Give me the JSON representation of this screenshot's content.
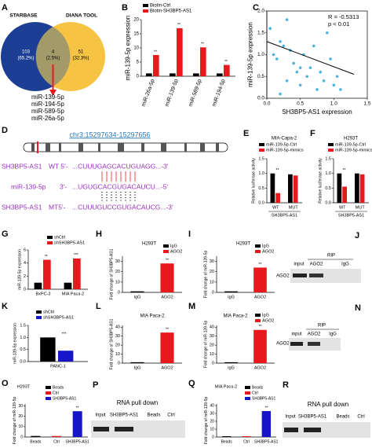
{
  "venn": {
    "label": "A",
    "sets": [
      "STARBASE",
      "DIANA TOOL"
    ],
    "regions": [
      {
        "count": "103",
        "percent": "(65.2%)"
      },
      {
        "count": "4",
        "percent": "(2.5%)"
      },
      {
        "count": "51",
        "percent": "(32.3%)"
      }
    ],
    "mirnas": [
      "miR-139-5p",
      "miR-194-5p",
      "miR-589-5p",
      "miR-26a-5p"
    ]
  },
  "locus": {
    "label": "D",
    "coords": "chr3:15297634-15297656",
    "rows": [
      {
        "name": "SH3BP5-AS1",
        "tag": "WT 5'-",
        "seq": "...CUUUGAGCACUGUAGG...-3'"
      },
      {
        "name": "miR-139-5p",
        "tag": "3'-",
        "seq": "...UGUGCACGUGACAUCU...-5'"
      },
      {
        "name": "SH3BP5-AS1",
        "tag": "MT5'-",
        "seq": "...CUUUGUCCGUGACAUCG...-3'"
      }
    ]
  },
  "blots": [
    {
      "label": "J",
      "title": "RIP",
      "lanes": [
        "input",
        "AGO2",
        "IgG"
      ],
      "row": "AGO2"
    },
    {
      "label": "N",
      "title": "RIP",
      "lanes": [
        "input",
        "AGO2",
        "IgG"
      ],
      "row": "AGO2"
    },
    {
      "label": "P",
      "title": "RNA pull down",
      "lanes": [
        "Input",
        "SH3BP5-AS1",
        "Beads",
        "Ctrl"
      ]
    },
    {
      "label": "R",
      "title": "RNA pull down",
      "lanes": [
        "Input",
        "SH3BP5-AS1",
        "Beads",
        "Ctrl"
      ]
    }
  ],
  "chart_data": [
    {
      "type": "bar",
      "label": "B",
      "ylabel": "miR-139-5p expression",
      "categories": [
        "miR-26a-5p",
        "miR-139-5p",
        "miR-589-5p",
        "miR-194-5p"
      ],
      "series": [
        {
          "name": "Biotin-Ctrl",
          "color": "#000000",
          "values": [
            1,
            1,
            1,
            1
          ]
        },
        {
          "name": "Biotin-SH3BP5-AS1",
          "color": "#e8191d",
          "values": [
            7.5,
            17,
            10.2,
            4
          ]
        }
      ],
      "significance": [
        "**",
        "**",
        "**",
        "**"
      ],
      "ylim": [
        0,
        20
      ],
      "yticks": [
        0,
        5,
        10,
        15,
        20
      ]
    },
    {
      "type": "scatter",
      "label": "C",
      "xlabel": "SH3BP5-AS1 expression",
      "ylabel": "miR-139-5p expression",
      "color": "#4fb3e0",
      "x": [
        0.05,
        0.1,
        0.15,
        0.2,
        0.25,
        0.3,
        0.35,
        0.4,
        0.45,
        0.5,
        0.55,
        0.6,
        0.65,
        0.7,
        0.75,
        0.8,
        0.85,
        0.9,
        0.95,
        1.0,
        1.05,
        1.1,
        0.3,
        0.5,
        0.2
      ],
      "y": [
        1.6,
        1.0,
        0.9,
        1.3,
        1.2,
        0.4,
        1.1,
        0.8,
        0.6,
        0.3,
        1.0,
        0.5,
        0.7,
        1.2,
        0.2,
        0.6,
        0.4,
        1.5,
        0.9,
        0.3,
        0.5,
        0.2,
        1.8,
        0.7,
        0.1
      ],
      "fit": {
        "x": [
          0,
          1.3
        ],
        "y": [
          1.3,
          0.55
        ]
      },
      "annotations": [
        "R = -0.5313",
        "p < 0.01"
      ],
      "xlim": [
        0,
        1.5
      ],
      "xticks": [
        {
          "value": 0,
          "label": "0.0"
        },
        0.5,
        {
          "value": 1,
          "label": "1.0"
        },
        1.5
      ],
      "ylim": [
        0,
        2
      ],
      "yticks": [
        {
          "value": 0,
          "label": "0.0"
        },
        0.5,
        {
          "value": 1,
          "label": "1.0"
        },
        1.5,
        {
          "value": 2,
          "label": "2.0"
        }
      ]
    },
    {
      "type": "bar",
      "label": "E",
      "title": "MIA-Capa-2",
      "xlabel": "SH3BP5-AS1",
      "ylabel": "Relative luciferase activity",
      "categories": [
        "WT",
        "MUT"
      ],
      "series": [
        {
          "name": "miR-139-5p-Ctrl",
          "color": "#000000",
          "values": [
            1.0,
            0.97
          ]
        },
        {
          "name": "miR-139-5p-mimics",
          "color": "#e8191d",
          "values": [
            0.33,
            0.93
          ]
        }
      ],
      "significance": [
        "**",
        null
      ],
      "ylim": [
        0,
        1.5
      ],
      "yticks": [
        {
          "value": 0,
          "label": "0.0"
        },
        0.5,
        {
          "value": 1,
          "label": "1.0"
        },
        1.5
      ]
    },
    {
      "type": "bar",
      "label": "F",
      "title": "H293T",
      "xlabel": "SH3BP5-AS1",
      "ylabel": "Relative luciferase activity",
      "categories": [
        "WT",
        "MUT"
      ],
      "series": [
        {
          "name": "miR-139-5p-Ctrl",
          "color": "#000000",
          "values": [
            1.0,
            1.0
          ]
        },
        {
          "name": "miR-139-5p-mimics",
          "color": "#e8191d",
          "values": [
            0.55,
            0.97
          ]
        }
      ],
      "significance": [
        "**",
        null
      ],
      "ylim": [
        0,
        1.5
      ],
      "yticks": [
        {
          "value": 0,
          "label": "0.0"
        },
        0.5,
        {
          "value": 1,
          "label": "1.0"
        },
        1.5
      ]
    },
    {
      "type": "bar",
      "label": "G",
      "ylabel": "miR-139-5p expression",
      "categories": [
        "BxPC-3",
        "MIA Paca-2"
      ],
      "series": [
        {
          "name": "shCtrl",
          "color": "#000000",
          "values": [
            1,
            1
          ]
        },
        {
          "name": "shSH3BP5-AS1",
          "color": "#e8191d",
          "values": [
            4.5,
            4.7
          ]
        }
      ],
      "significance": [
        "**",
        "***"
      ],
      "ylim": [
        0,
        6
      ],
      "yticks": [
        0,
        2,
        4,
        6
      ]
    },
    {
      "type": "bar",
      "label": "H",
      "title": "H293T",
      "ylabel": "Fold change of SH3BP5-AS1",
      "categories": [
        "IgG",
        "AGO2"
      ],
      "values": [
        1,
        28
      ],
      "colors": [
        "#000000",
        "#e8191d"
      ],
      "legend": true,
      "significance": [
        null,
        "**"
      ],
      "ylim": [
        0,
        35
      ],
      "yticks": [
        0,
        10,
        20,
        30
      ]
    },
    {
      "type": "bar",
      "label": "I",
      "title": "H293T",
      "ylabel": "Fold change of miR-139-5p",
      "categories": [
        "IgG",
        "AGO2"
      ],
      "values": [
        1,
        24
      ],
      "colors": [
        "#000000",
        "#e8191d"
      ],
      "legend": true,
      "significance": [
        null,
        "**"
      ],
      "ylim": [
        0,
        35
      ],
      "yticks": [
        0,
        10,
        20,
        30
      ]
    },
    {
      "type": "bar",
      "label": "K",
      "ylabel": "miR-139-5p expression",
      "categories": [
        "PANC-1"
      ],
      "series": [
        {
          "name": "shCtrl",
          "color": "#000000",
          "values": [
            1.0
          ]
        },
        {
          "name": "shSH3BP5-AS1",
          "color": "#1616c8",
          "values": [
            0.45
          ]
        }
      ],
      "significance": [
        "***"
      ],
      "ylim": [
        0,
        1.5
      ],
      "yticks": [
        {
          "value": 0,
          "label": "0.0"
        },
        0.5,
        {
          "value": 1,
          "label": "1.0"
        },
        1.5
      ]
    },
    {
      "type": "bar",
      "label": "L",
      "title": "MIA Paca-2",
      "ylabel": "Fold change of SH3BP5-AS1",
      "categories": [
        "IgG",
        "AGO2"
      ],
      "values": [
        1,
        34
      ],
      "colors": [
        "#000000",
        "#e8191d"
      ],
      "legend": false,
      "significance": [
        null,
        "**"
      ],
      "ylim": [
        0,
        42
      ],
      "yticks": [
        0,
        10,
        20,
        30,
        40
      ]
    },
    {
      "type": "bar",
      "label": "M",
      "title": "MIA Paca-2",
      "ylabel": "Fold change of miR-139-5p",
      "categories": [
        "IgG",
        "AGO2"
      ],
      "values": [
        1,
        37
      ],
      "colors": [
        "#000000",
        "#e8191d"
      ],
      "legend": true,
      "significance": [
        null,
        "**"
      ],
      "ylim": [
        0,
        42
      ],
      "yticks": [
        0,
        10,
        20,
        30,
        40
      ]
    },
    {
      "type": "bar",
      "label": "O",
      "title": "H293T",
      "ylabel": "Fold change of miR-139-5p",
      "categories": [
        "Beads",
        "Ctrl",
        "SH3BP5-AS1"
      ],
      "values": [
        1,
        1,
        25
      ],
      "colors": [
        "#000000",
        "#e8191d",
        "#1616c8"
      ],
      "legend": true,
      "significance": [
        null,
        null,
        "**"
      ],
      "ylim": [
        0,
        32
      ],
      "yticks": [
        0,
        10,
        20,
        30
      ]
    },
    {
      "type": "bar",
      "label": "Q",
      "title": "MIA Paca-2",
      "ylabel": "Fold change of miR-139-5p",
      "categories": [
        "Beads",
        "Ctrl",
        "SH3BP5-AS1"
      ],
      "values": [
        1,
        1,
        33
      ],
      "colors": [
        "#000000",
        "#e8191d",
        "#1616c8"
      ],
      "legend": true,
      "significance": [
        null,
        null,
        "**"
      ],
      "ylim": [
        0,
        42
      ],
      "yticks": [
        0,
        10,
        20,
        30,
        40
      ]
    }
  ]
}
